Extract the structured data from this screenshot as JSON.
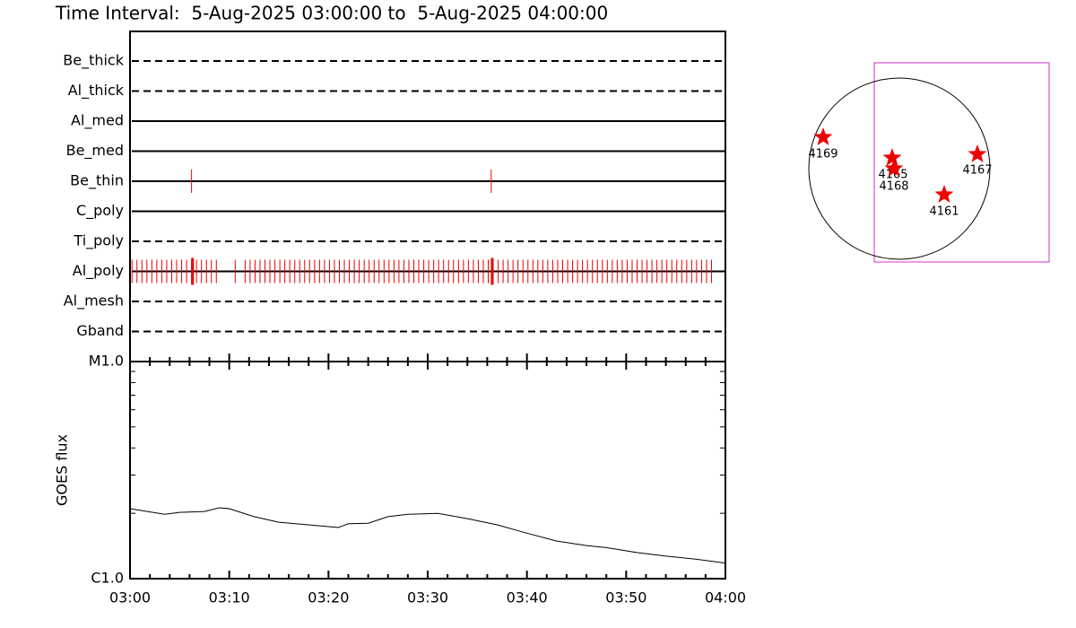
{
  "title": "Time Interval:  5-Aug-2025 03:00:00 to  5-Aug-2025 04:00:00",
  "chart_data": [
    {
      "type": "timeline",
      "categories": [
        "Be_thick",
        "Al_thick",
        "Al_med",
        "Be_med",
        "Be_thin",
        "C_poly",
        "Ti_poly",
        "Al_poly",
        "Al_mesh",
        "Gband"
      ],
      "line_styles": [
        "dashed",
        "dashed",
        "solid",
        "solid",
        "solid",
        "solid",
        "dashed",
        "solid",
        "dashed",
        "dashed"
      ],
      "color": "#ee0000",
      "events": [
        [],
        [],
        [],
        [],
        [
          6.2,
          36.4
        ],
        [],
        [],
        [
          0.2,
          0.7,
          1.2,
          1.7,
          2.2,
          2.7,
          3.2,
          3.7,
          4.2,
          4.7,
          5.2,
          5.7,
          6.2,
          6.7,
          7.2,
          7.7,
          8.2,
          8.7,
          10.6,
          11.6,
          12.1,
          12.6,
          13.1,
          13.6,
          14.1,
          14.6,
          15.1,
          15.6,
          16.1,
          16.6,
          17.1,
          17.6,
          18.1,
          18.6,
          19.1,
          19.6,
          20.1,
          20.6,
          21.1,
          21.6,
          22.1,
          22.6,
          23.1,
          23.6,
          24.1,
          24.6,
          25.1,
          25.6,
          26.1,
          26.6,
          27.1,
          27.6,
          28.1,
          28.6,
          29.1,
          29.6,
          30.1,
          30.6,
          31.1,
          31.6,
          32.1,
          32.6,
          33.1,
          33.6,
          34.1,
          34.6,
          35.1,
          35.6,
          36.1,
          36.6,
          37.1,
          37.6,
          38.1,
          38.6,
          39.1,
          39.6,
          40.1,
          40.6,
          41.1,
          41.6,
          42.1,
          42.6,
          43.1,
          43.6,
          44.1,
          44.6,
          45.1,
          45.6,
          46.1,
          46.6,
          47.1,
          47.6,
          48.1,
          48.6,
          49.1,
          49.6,
          50.1,
          50.6,
          51.1,
          51.6,
          52.1,
          52.6,
          53.1,
          53.6,
          54.1,
          54.6,
          55.1,
          55.6,
          56.1,
          56.6,
          57.1,
          57.6,
          58.1,
          58.6
        ],
        [],
        []
      ],
      "major_events": [
        [],
        [],
        [],
        [],
        [],
        [],
        [],
        [
          6.3,
          36.5
        ],
        [],
        []
      ],
      "xlim": [
        0,
        60
      ]
    },
    {
      "type": "line",
      "y_label": "GOES flux",
      "log_y": true,
      "color": "#000000",
      "x": [
        0,
        3.5,
        5,
        7.5,
        9,
        10,
        12.5,
        15,
        18,
        21,
        22,
        24,
        26,
        28,
        31,
        34,
        37,
        40,
        43,
        46,
        48,
        51,
        54,
        57,
        60
      ],
      "values": [
        2.1e-06,
        1.98e-06,
        2.02e-06,
        2.04e-06,
        2.12e-06,
        2.1e-06,
        1.93e-06,
        1.82e-06,
        1.77e-06,
        1.72e-06,
        1.79e-06,
        1.8e-06,
        1.93e-06,
        1.98e-06,
        2e-06,
        1.89e-06,
        1.77e-06,
        1.62e-06,
        1.49e-06,
        1.42e-06,
        1.39e-06,
        1.32e-06,
        1.27e-06,
        1.23e-06,
        1.18e-06
      ],
      "xlim": [
        0,
        60
      ],
      "xticks": [
        {
          "value": 0,
          "label": "03:00"
        },
        {
          "value": 10,
          "label": "03:10"
        },
        {
          "value": 20,
          "label": "03:20"
        },
        {
          "value": 30,
          "label": "03:30"
        },
        {
          "value": 40,
          "label": "03:40"
        },
        {
          "value": 50,
          "label": "03:50"
        },
        {
          "value": 60,
          "label": "04:00"
        }
      ],
      "xminor_ticks": [
        2,
        4,
        6,
        8,
        12,
        14,
        16,
        18,
        22,
        24,
        26,
        28,
        32,
        34,
        36,
        38,
        42,
        44,
        46,
        48,
        52,
        54,
        56,
        58
      ],
      "ylim": [
        1e-06,
        1e-05
      ],
      "yticks": [
        {
          "value": 1e-06,
          "label": "C1.0"
        },
        {
          "value": 1e-05,
          "label": "M1.0"
        }
      ],
      "yminor_ticks": [
        2e-06,
        3e-06,
        4e-06,
        5e-06,
        6e-06,
        7e-06,
        8e-06,
        9e-06
      ]
    }
  ],
  "sun_map": {
    "regions": [
      "4169",
      "4165",
      "4168",
      "4167",
      "4161"
    ]
  }
}
